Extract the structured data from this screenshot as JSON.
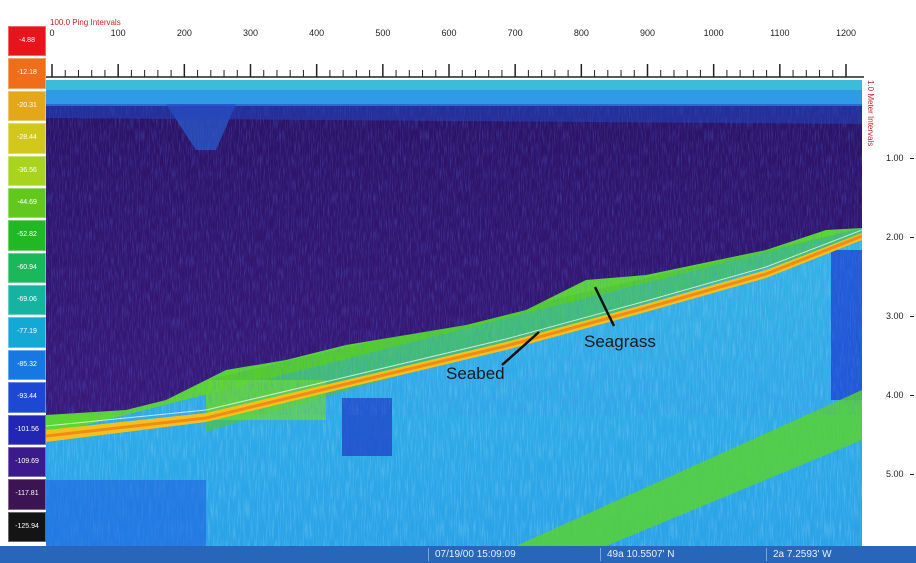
{
  "scale": {
    "labels": [
      "-4.88",
      "-12.18",
      "-20.31",
      "-28.44",
      "-36.56",
      "-44.69",
      "-52.82",
      "-60.94",
      "-69.06",
      "-77.19",
      "-85.32",
      "-93.44",
      "-101.56",
      "-109.69",
      "-117.81",
      "-125.94"
    ],
    "colors": [
      "#e8141c",
      "#ee6e1a",
      "#e3a81a",
      "#d2c81c",
      "#a8d41e",
      "#62c81e",
      "#22b824",
      "#1ab85a",
      "#14b4a0",
      "#14a8d4",
      "#1678e0",
      "#1c48d4",
      "#2226b4",
      "#3a1a8c",
      "#3c1454",
      "#141414"
    ]
  },
  "top_ruler": {
    "title": "100.0 Ping Intervals",
    "ticks": [
      "0",
      "100",
      "200",
      "300",
      "400",
      "500",
      "600",
      "700",
      "800",
      "900",
      "1000",
      "1100",
      "1200"
    ]
  },
  "right_ruler": {
    "title": "1.0 Meter Intervals",
    "ticks": [
      "1.00",
      "2.00",
      "3.00",
      "4.00",
      "5.00"
    ]
  },
  "annotations": {
    "seabed": "Seabed",
    "seagrass": "Seagrass"
  },
  "colors": {
    "water_column": "#3a1670",
    "surface_noise": "#1f5fd6",
    "seagrass": "#5cd632",
    "seabed_line": "#f4c818",
    "substrate": "#2fb6ea",
    "status_bar": "#2766b8"
  },
  "status_bar": {
    "timestamp": "07/19/00 15:09:09",
    "latitude": "49a 10.5507' N",
    "longitude": "2a 7.2593' W"
  }
}
